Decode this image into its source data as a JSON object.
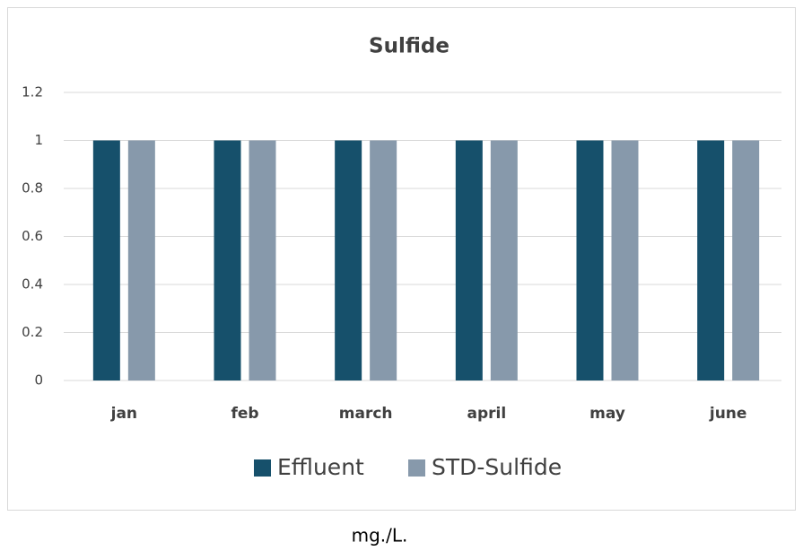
{
  "chart_data": {
    "type": "bar",
    "title": "Sulfide",
    "categories": [
      "jan",
      "feb",
      "march",
      "april",
      "may",
      "june"
    ],
    "series": [
      {
        "name": "Effluent",
        "color": "#16506b",
        "values": [
          1,
          1,
          1,
          1,
          1,
          1
        ]
      },
      {
        "name": "STD-Sulfide",
        "color": "#8799ab",
        "values": [
          1,
          1,
          1,
          1,
          1,
          1
        ]
      }
    ],
    "ylim": [
      0,
      1.2
    ],
    "yticks": [
      0,
      0.2,
      0.4,
      0.6,
      0.8,
      1,
      1.2
    ],
    "grid": true,
    "legend": "bottom",
    "annotation": "mg./L."
  }
}
